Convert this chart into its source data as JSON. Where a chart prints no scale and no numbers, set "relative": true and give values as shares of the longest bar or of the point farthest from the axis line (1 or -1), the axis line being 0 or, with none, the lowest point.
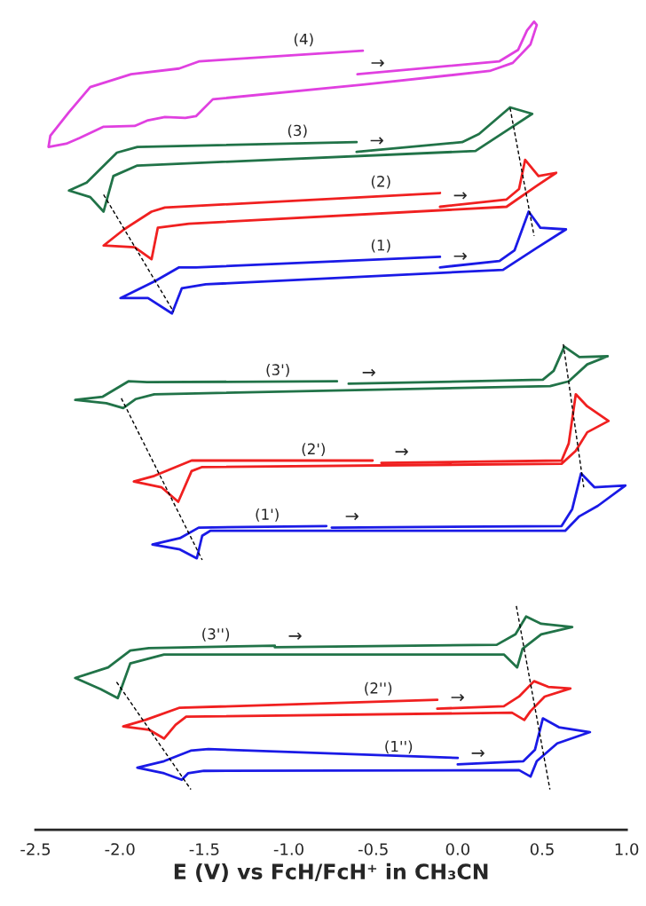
{
  "chart_data": {
    "type": "line",
    "relative": true,
    "xlabel": "E (V) vs FcH/FcH⁺ in CH₃CN",
    "xlim": [
      -2.5,
      1.0
    ],
    "xticks": [
      -2.5,
      {
        "value": -2.0,
        "label": "-2.0"
      },
      -1.5,
      {
        "value": -1.0,
        "label": "-1.0"
      },
      -0.5,
      {
        "value": 0.0,
        "label": "0.0"
      },
      0.5,
      {
        "value": 1.0,
        "label": "1.0"
      }
    ],
    "tick_labels": "x",
    "line_style": "solid",
    "series": [
      {
        "name": "(4)",
        "color": "#e040e0",
        "x": [
          -0.594,
          0.247,
          0.357,
          0.41,
          0.452,
          0.468,
          0.431,
          0.326,
          0.189,
          -0.562,
          -1.45,
          -1.55,
          -1.613,
          -1.734,
          -1.834,
          -1.913,
          -2.097,
          -2.239,
          -2.318,
          -2.423,
          -2.412,
          -2.302,
          -2.176,
          -1.934,
          -1.65,
          -1.529,
          -1.371,
          -0.562
        ],
        "values": [
          0.935,
          0.951,
          0.965,
          0.989,
          1.0,
          0.996,
          0.972,
          0.949,
          0.939,
          0.922,
          0.904,
          0.883,
          0.881,
          0.882,
          0.878,
          0.871,
          0.87,
          0.856,
          0.849,
          0.845,
          0.859,
          0.888,
          0.919,
          0.935,
          0.942,
          0.951,
          0.953,
          0.964
        ]
      },
      {
        "name": "(3)",
        "color": "#217348",
        "x": [
          -0.599,
          0.026,
          0.126,
          0.31,
          0.441,
          0.31,
          0.105,
          -1.897,
          -2.039,
          -2.097,
          -2.176,
          -2.302,
          -2.197,
          -2.018,
          -1.897,
          -0.599
        ],
        "values": [
          0.839,
          0.851,
          0.861,
          0.894,
          0.886,
          0.868,
          0.84,
          0.822,
          0.809,
          0.765,
          0.783,
          0.791,
          0.801,
          0.838,
          0.845,
          0.851
        ]
      },
      {
        "name": "(2)",
        "color": "#f02020",
        "x": [
          -0.105,
          0.289,
          0.363,
          0.399,
          0.478,
          0.583,
          0.468,
          0.289,
          -1.592,
          -1.776,
          -1.813,
          -1.913,
          -2.097,
          -1.976,
          -1.813,
          -1.734,
          -0.105
        ],
        "values": [
          0.771,
          0.78,
          0.793,
          0.829,
          0.809,
          0.813,
          0.797,
          0.771,
          0.75,
          0.745,
          0.706,
          0.721,
          0.723,
          0.743,
          0.765,
          0.77,
          0.788
        ]
      },
      {
        "name": "(1)",
        "color": "#1a1ae6",
        "x": [
          -0.105,
          0.247,
          0.336,
          0.42,
          0.489,
          0.641,
          0.468,
          0.268,
          -1.492,
          -1.634,
          -1.692,
          -1.834,
          -1.997,
          -1.792,
          -1.65,
          -1.55,
          -0.105
        ],
        "values": [
          0.696,
          0.704,
          0.717,
          0.765,
          0.745,
          0.743,
          0.72,
          0.693,
          0.675,
          0.67,
          0.639,
          0.658,
          0.658,
          0.679,
          0.696,
          0.696,
          0.709
        ]
      },
      {
        "name": "(3')",
        "color": "#217348",
        "x": [
          -0.646,
          0.504,
          0.568,
          0.631,
          0.72,
          0.888,
          0.767,
          0.657,
          0.547,
          -1.797,
          -1.908,
          -1.981,
          -2.081,
          -2.265,
          -2.102,
          -1.95,
          -1.839,
          -0.715
        ],
        "values": [
          0.552,
          0.557,
          0.568,
          0.598,
          0.585,
          0.586,
          0.576,
          0.555,
          0.549,
          0.539,
          0.533,
          0.522,
          0.528,
          0.532,
          0.536,
          0.555,
          0.554,
          0.555
        ]
      },
      {
        "name": "(2')",
        "color": "#f02020",
        "x": [
          -0.452,
          0.615,
          0.657,
          0.699,
          0.767,
          0.893,
          0.767,
          0.699,
          0.615,
          -1.513,
          -1.576,
          -1.655,
          -1.755,
          -1.918,
          -1.797,
          -1.576,
          -0.504
        ],
        "values": [
          0.454,
          0.457,
          0.478,
          0.539,
          0.524,
          0.506,
          0.492,
          0.469,
          0.453,
          0.449,
          0.444,
          0.406,
          0.424,
          0.431,
          0.438,
          0.457,
          0.457
        ]
      },
      {
        "name": "(1')",
        "color": "#1a1ae6",
        "x": [
          -0.746,
          0.615,
          0.678,
          0.73,
          0.809,
          0.993,
          0.83,
          0.72,
          0.636,
          -1.466,
          -1.513,
          -1.545,
          -1.645,
          -1.808,
          -1.645,
          -1.534,
          -0.778
        ],
        "values": [
          0.374,
          0.376,
          0.397,
          0.441,
          0.424,
          0.426,
          0.401,
          0.388,
          0.37,
          0.37,
          0.364,
          0.336,
          0.347,
          0.353,
          0.361,
          0.374,
          0.376
        ]
      },
      {
        "name": "(3'')",
        "color": "#217348",
        "x": [
          -1.083,
          0.231,
          0.342,
          0.405,
          0.494,
          0.678,
          0.494,
          0.384,
          0.352,
          0.273,
          -1.739,
          -1.939,
          -2.013,
          -2.113,
          -2.265,
          -2.07,
          -1.939,
          -1.829,
          -1.083
        ],
        "values": [
          0.226,
          0.229,
          0.242,
          0.264,
          0.255,
          0.251,
          0.242,
          0.224,
          0.201,
          0.217,
          0.217,
          0.206,
          0.163,
          0.174,
          0.188,
          0.201,
          0.222,
          0.225,
          0.228
        ]
      },
      {
        "name": "(2'')",
        "color": "#f02020",
        "x": [
          -0.121,
          0.273,
          0.363,
          0.452,
          0.536,
          0.667,
          0.515,
          0.431,
          0.394,
          0.321,
          -1.608,
          -1.671,
          -1.739,
          -1.829,
          -1.981,
          -1.85,
          -1.65,
          -0.121
        ],
        "values": [
          0.15,
          0.153,
          0.165,
          0.184,
          0.177,
          0.175,
          0.165,
          0.147,
          0.136,
          0.145,
          0.14,
          0.13,
          0.113,
          0.124,
          0.128,
          0.136,
          0.151,
          0.161
        ]
      },
      {
        "name": "(1'')",
        "color": "#1a1ae6",
        "x": [
          0.0,
          0.389,
          0.457,
          0.504,
          0.599,
          0.783,
          0.589,
          0.468,
          0.431,
          0.363,
          -1.503,
          -1.597,
          -1.634,
          -1.739,
          -1.897,
          -1.739,
          -1.581,
          -1.476,
          0.0
        ],
        "values": [
          0.081,
          0.085,
          0.099,
          0.138,
          0.127,
          0.121,
          0.107,
          0.085,
          0.066,
          0.074,
          0.073,
          0.07,
          0.062,
          0.07,
          0.077,
          0.085,
          0.098,
          0.1,
          0.089
        ]
      },
      {
        "color": "#000000",
        "line_style": "dashed",
        "x": [
          -2.097,
          -1.682
        ],
        "values": [
          0.786,
          0.641
        ]
      },
      {
        "color": "#000000",
        "line_style": "dashed",
        "x": [
          0.31,
          0.452
        ],
        "values": [
          0.893,
          0.735
        ]
      },
      {
        "color": "#000000",
        "line_style": "dashed",
        "x": [
          -1.992,
          -1.513
        ],
        "values": [
          0.534,
          0.334
        ]
      },
      {
        "color": "#000000",
        "line_style": "dashed",
        "x": [
          0.625,
          0.746
        ],
        "values": [
          0.601,
          0.424
        ]
      },
      {
        "color": "#000000",
        "line_style": "dashed",
        "x": [
          -2.02,
          -1.58
        ],
        "values": [
          0.183,
          0.05
        ]
      },
      {
        "color": "#000000",
        "line_style": "dashed",
        "x": [
          0.347,
          0.546
        ],
        "values": [
          0.277,
          0.05
        ]
      }
    ],
    "annotations": [
      "→",
      "→",
      "→",
      "→",
      "→",
      "→",
      "→",
      "→",
      "→",
      "→"
    ]
  }
}
